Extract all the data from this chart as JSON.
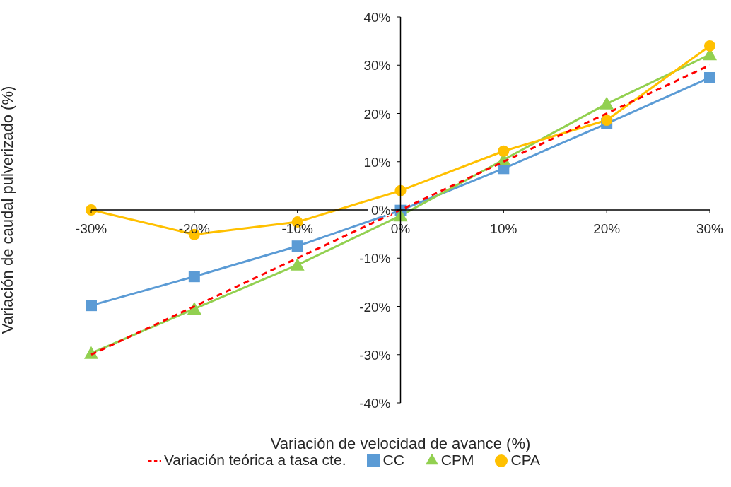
{
  "chart_data": {
    "type": "line",
    "xlabel": "Variación de velocidad de avance (%)",
    "ylabel": "Variación de caudal pulverizado (%)",
    "x": [
      -30,
      -20,
      -10,
      0,
      10,
      20,
      30
    ],
    "series": [
      {
        "name": "Variación teórica a tasa cte.",
        "color": "#ff0000",
        "values": [
          -30,
          -20,
          -10,
          0,
          10,
          20,
          30
        ],
        "marker": "none",
        "line_style": "dashed"
      },
      {
        "name": "CC",
        "color": "#5b9bd5",
        "values": [
          -19.8,
          -13.8,
          -7.5,
          -0.1,
          8.6,
          17.9,
          27.4
        ],
        "marker": "square",
        "line_style": "solid"
      },
      {
        "name": "CPM",
        "color": "#92d050",
        "values": [
          -29.7,
          -20.5,
          -11.4,
          -1.2,
          10.4,
          22.0,
          32.2
        ],
        "marker": "triangle",
        "line_style": "solid"
      },
      {
        "name": "CPA",
        "color": "#ffc000",
        "values": [
          0,
          -5.1,
          -2.5,
          4.0,
          12.2,
          18.6,
          34.0
        ],
        "marker": "circle",
        "line_style": "solid"
      }
    ],
    "xlim": [
      -30,
      30
    ],
    "xticks": [
      {
        "value": -30,
        "label": "-30%"
      },
      {
        "value": -20,
        "label": "-20%"
      },
      {
        "value": -10,
        "label": "-10%"
      },
      {
        "value": 0,
        "label": "0%"
      },
      {
        "value": 10,
        "label": "10%"
      },
      {
        "value": 20,
        "label": "20%"
      },
      {
        "value": 30,
        "label": "30%"
      }
    ],
    "ylim": [
      -40,
      40
    ],
    "yticks": [
      {
        "value": -40,
        "label": "-40%"
      },
      {
        "value": -30,
        "label": "-30%"
      },
      {
        "value": -20,
        "label": "-20%"
      },
      {
        "value": -10,
        "label": "-10%"
      },
      {
        "value": 0,
        "label": "0%"
      },
      {
        "value": 10,
        "label": "10%"
      },
      {
        "value": 20,
        "label": "20%"
      },
      {
        "value": 30,
        "label": "30%"
      },
      {
        "value": 40,
        "label": "40%"
      }
    ],
    "grid": false,
    "legend": "bottom"
  }
}
